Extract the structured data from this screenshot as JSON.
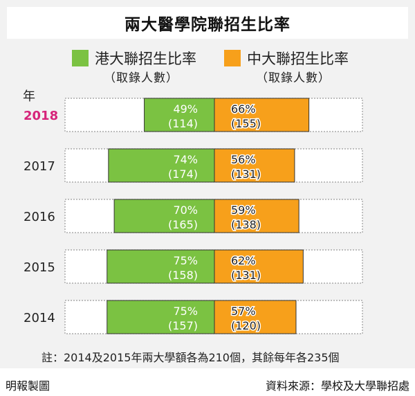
{
  "title": "兩大醫學院聯招生比率",
  "legend": [
    {
      "label": "港大聯招生比率",
      "sub": "（取錄人數）",
      "color": "#7bc242"
    },
    {
      "label": "中大聯招生比率",
      "sub": "（取錄人數）",
      "color": "#f7a01b"
    }
  ],
  "year_header": "年",
  "highlight_color": "#d6247a",
  "chart_data": {
    "type": "bar",
    "orientation": "horizontal-diverging",
    "categories": [
      "2018",
      "2017",
      "2016",
      "2015",
      "2014"
    ],
    "highlight_category": "2018",
    "series": [
      {
        "name": "港大聯招生比率",
        "values": [
          49,
          74,
          70,
          75,
          75
        ],
        "counts": [
          114,
          174,
          165,
          158,
          157
        ],
        "value_labels": [
          "49%",
          "74%",
          "70%",
          "75%",
          "75%"
        ],
        "count_labels": [
          "(114)",
          "(174)",
          "(165)",
          "(158)",
          "(157)"
        ]
      },
      {
        "name": "中大聯招生比率",
        "values": [
          66,
          56,
          59,
          62,
          57
        ],
        "counts": [
          155,
          131,
          138,
          131,
          120
        ],
        "value_labels": [
          "66%",
          "56%",
          "59%",
          "62%",
          "57%"
        ],
        "count_labels": [
          "(155)",
          "(131)",
          "(138)",
          "(131)",
          "(120)"
        ]
      }
    ],
    "unit": "%",
    "xlim": [
      0,
      100
    ]
  },
  "note": "註：2014及2015年兩大學額各為210個，其餘每年各235個",
  "credit_left": "明報製圖",
  "credit_right": "資料來源：學校及大學聯招處"
}
